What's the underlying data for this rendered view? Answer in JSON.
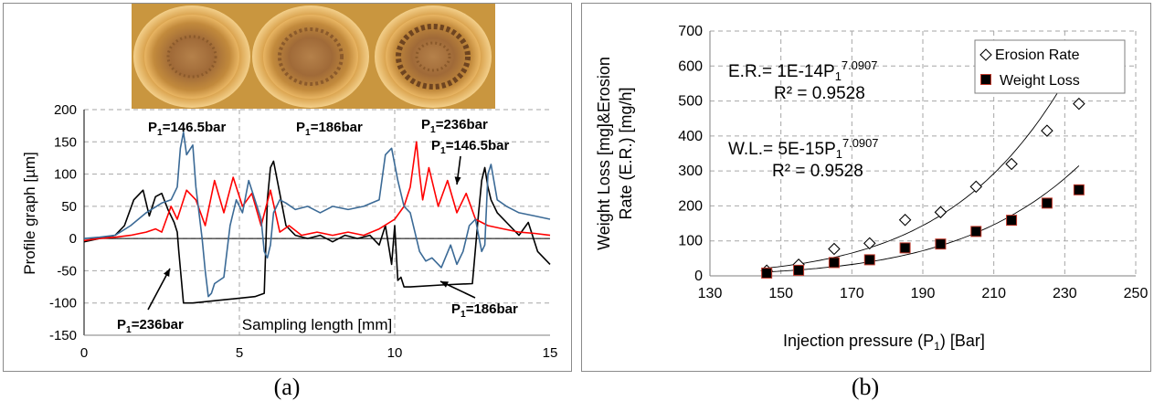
{
  "captions": {
    "a": "(a)",
    "b": "(b)"
  },
  "chart_data": [
    {
      "type": "line",
      "photo": "three eroded sample discs",
      "xlabel": "Sampling length [mm]",
      "ylabel": "Profile graph [µm]",
      "xlim": [
        0,
        15
      ],
      "ylim": [
        -150,
        200
      ],
      "xticks": [
        "0",
        "5",
        "10",
        "15"
      ],
      "yticks": [
        "200",
        "150",
        "100",
        "50",
        "0",
        "-50",
        "-100",
        "-150"
      ],
      "grid": true,
      "annotations": {
        "p146_top": {
          "base": "P",
          "sub": "1",
          "rest": "=146.5bar"
        },
        "p186_top": {
          "base": "P",
          "sub": "1",
          "rest": "=186bar"
        },
        "p236_top": {
          "base": "P",
          "sub": "1",
          "rest": "=236bar"
        },
        "p146_right": {
          "base": "P",
          "sub": "1",
          "rest": "=146.5bar"
        },
        "p236_bottom": {
          "base": "P",
          "sub": "1",
          "rest": "=236bar"
        },
        "p186_bottom": {
          "base": "P",
          "sub": "1",
          "rest": "=186bar"
        }
      },
      "series": [
        {
          "color": "#000000",
          "x": [
            0,
            0.5,
            1,
            1.3,
            1.6,
            1.9,
            2.1,
            2.3,
            2.5,
            2.7,
            2.9,
            3.0,
            3.05,
            3.2,
            3.5,
            4.5,
            5.5,
            5.8,
            5.9,
            6.0,
            6.1,
            6.3,
            6.5,
            6.8,
            7.2,
            7.6,
            8.0,
            8.4,
            8.8,
            9.2,
            9.5,
            9.7,
            9.9,
            10.0,
            10.1,
            10.2,
            10.3,
            10.4,
            10.5,
            11.5,
            12.5,
            12.7,
            12.8,
            12.9,
            13.0,
            13.1,
            13.3,
            13.6,
            14.0,
            14.3,
            14.6,
            15.0
          ],
          "y": [
            -5,
            0,
            5,
            20,
            60,
            75,
            35,
            65,
            70,
            45,
            25,
            10,
            -20,
            -100,
            -100,
            -95,
            -90,
            -85,
            60,
            110,
            120,
            70,
            20,
            5,
            0,
            5,
            -5,
            5,
            0,
            5,
            -10,
            20,
            -40,
            20,
            -65,
            -60,
            -75,
            -75,
            -75,
            -72,
            -70,
            40,
            90,
            110,
            80,
            60,
            40,
            25,
            5,
            25,
            -20,
            -40
          ]
        },
        {
          "color": "#ff0000",
          "x": [
            0,
            0.5,
            1,
            1.5,
            2,
            2.3,
            2.5,
            2.8,
            3.0,
            3.3,
            3.6,
            3.9,
            4.2,
            4.5,
            4.8,
            5.1,
            5.4,
            5.7,
            6.0,
            6.3,
            6.6,
            7.0,
            7.5,
            8.0,
            8.5,
            9.0,
            9.5,
            10.0,
            10.3,
            10.5,
            10.7,
            10.8,
            10.9,
            11.1,
            11.4,
            11.7,
            12.0,
            12.3,
            12.6,
            13.0,
            13.5,
            14.0,
            14.5,
            15.0
          ],
          "y": [
            -3,
            0,
            2,
            5,
            10,
            15,
            10,
            50,
            30,
            75,
            60,
            20,
            90,
            40,
            95,
            50,
            70,
            20,
            75,
            10,
            20,
            5,
            10,
            5,
            10,
            5,
            15,
            30,
            50,
            80,
            150,
            100,
            60,
            110,
            50,
            90,
            40,
            70,
            30,
            20,
            15,
            10,
            8,
            5
          ]
        },
        {
          "color": "#3b6a96",
          "x": [
            0,
            0.5,
            1,
            1.5,
            2,
            2.5,
            2.8,
            3.0,
            3.1,
            3.2,
            3.3,
            3.5,
            3.6,
            3.8,
            3.9,
            4.0,
            4.1,
            4.2,
            4.5,
            4.7,
            4.9,
            5.1,
            5.3,
            5.5,
            5.7,
            5.8,
            5.9,
            6.0,
            6.1,
            6.3,
            6.5,
            6.8,
            7.2,
            7.6,
            8.0,
            8.5,
            9.0,
            9.5,
            9.7,
            9.9,
            10.1,
            10.3,
            10.5,
            10.8,
            11.0,
            11.2,
            11.5,
            11.8,
            12.0,
            12.2,
            12.4,
            12.6,
            12.8,
            12.9,
            13.0,
            13.1,
            13.3,
            13.6,
            14.0,
            14.5,
            15.0
          ],
          "y": [
            0,
            2,
            5,
            20,
            40,
            55,
            60,
            80,
            140,
            165,
            130,
            145,
            80,
            0,
            -50,
            -90,
            -85,
            -70,
            -60,
            20,
            60,
            40,
            90,
            60,
            30,
            -20,
            -30,
            -10,
            40,
            60,
            55,
            45,
            50,
            40,
            50,
            45,
            50,
            60,
            130,
            140,
            90,
            50,
            40,
            -20,
            -35,
            -30,
            -45,
            -10,
            -40,
            -20,
            20,
            30,
            -20,
            -10,
            100,
            115,
            60,
            50,
            40,
            35,
            30
          ]
        }
      ]
    },
    {
      "type": "scatter",
      "xlabel": {
        "base": "Injection pressure (P",
        "sub": "1",
        "rest": ") [Bar]"
      },
      "ylabel": [
        "Weight Loss [mg]&Erosion",
        "Rate (E.R.) [mg/h]"
      ],
      "xlim": [
        130,
        250
      ],
      "ylim": [
        0,
        700
      ],
      "xticks": [
        "130",
        "150",
        "170",
        "190",
        "210",
        "230",
        "250"
      ],
      "yticks": [
        "700",
        "600",
        "500",
        "400",
        "300",
        "200",
        "100",
        "0"
      ],
      "grid": true,
      "legend_placement": "top-right",
      "legend": [
        {
          "label": "Erosion Rate",
          "marker": "diamond-open"
        },
        {
          "label": "Weight Loss",
          "marker": "square-filled"
        }
      ],
      "equations": {
        "er": {
          "prefix": "E.R.= 1E-14P",
          "sub": "1",
          "sup": "7.0907"
        },
        "er_r2": "R² = 0.9528",
        "wl": {
          "prefix": "W.L.= 5E-15P",
          "sub": "1",
          "sup": "7.0907"
        },
        "wl_r2": "R² = 0.9528"
      },
      "series": [
        {
          "marker": "diamond-open",
          "x": [
            146,
            155,
            165,
            175,
            185,
            195,
            205,
            215,
            225,
            234
          ],
          "y": [
            15,
            32,
            77,
            93,
            160,
            182,
            255,
            320,
            415,
            492
          ]
        },
        {
          "marker": "square-filled",
          "x": [
            146,
            155,
            165,
            175,
            185,
            195,
            205,
            215,
            225,
            234
          ],
          "y": [
            8,
            16,
            38,
            46,
            80,
            91,
            127,
            159,
            208,
            246
          ]
        }
      ],
      "trendlines": [
        {
          "series": "er",
          "a": 1e-14,
          "b": 7.0907,
          "x_from": 145,
          "x_to": 234
        },
        {
          "series": "wl",
          "a": 5e-15,
          "b": 7.0907,
          "x_from": 145,
          "x_to": 234
        }
      ]
    }
  ]
}
